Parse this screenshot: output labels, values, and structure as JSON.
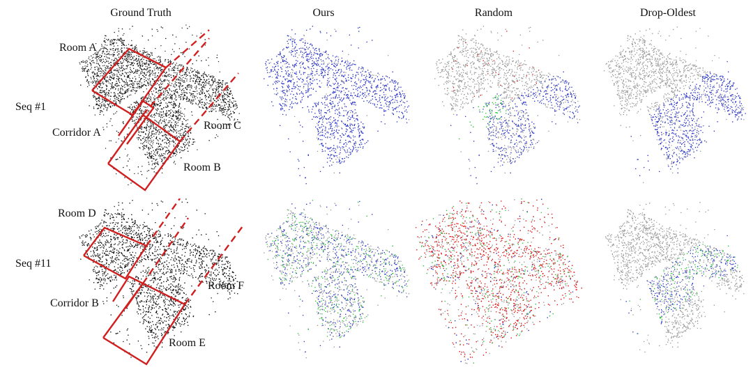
{
  "columns": [
    "Ground Truth",
    "Ours",
    "Random",
    "Drop-Oldest"
  ],
  "rows": [
    "Seq #1",
    "Seq #11"
  ],
  "region_labels": {
    "seq1": {
      "room_a": "Room A",
      "corridor_a": "Corridor A",
      "room_b": "Room B",
      "room_c": "Room C"
    },
    "seq11": {
      "room_d": "Room D",
      "corridor_b": "Corridor B",
      "room_e": "Room E",
      "room_f": "Room F"
    }
  },
  "colors": {
    "ground_truth_points": "#111111",
    "annotation_outline": "#d11f1f",
    "retained_points": "#2a35c8",
    "discarded_gray": "#9a9a9a",
    "green_points": "#29c23a",
    "red_points": "#e01616"
  }
}
